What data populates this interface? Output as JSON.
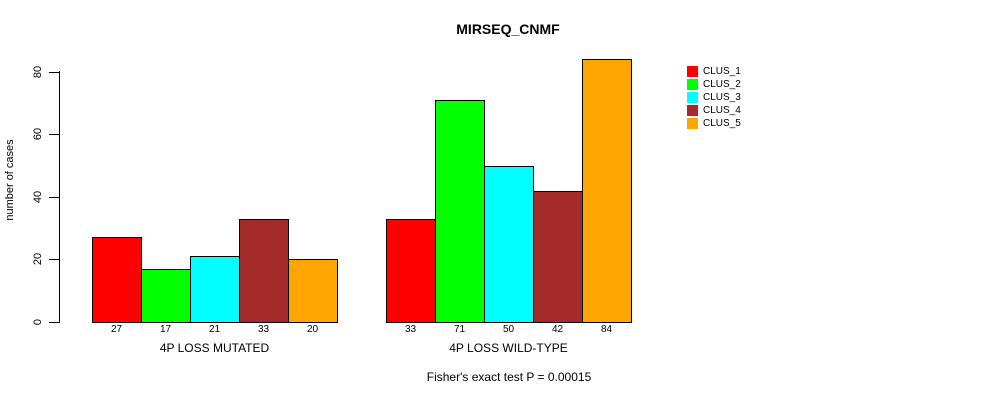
{
  "title": "MIRSEQ_CNMF",
  "y_axis": {
    "label": "number of cases",
    "ticks": [
      0,
      20,
      40,
      60,
      80
    ]
  },
  "caption": "Fisher's exact test P = 0.00015",
  "legend": {
    "items": [
      {
        "label": "CLUS_1",
        "color": "#FF0000"
      },
      {
        "label": "CLUS_2",
        "color": "#00FF00"
      },
      {
        "label": "CLUS_3",
        "color": "#00FFFF"
      },
      {
        "label": "CLUS_4",
        "color": "#A52A2A"
      },
      {
        "label": "CLUS_5",
        "color": "#FFA500"
      }
    ]
  },
  "chart_data": {
    "type": "bar",
    "title": "MIRSEQ_CNMF",
    "ylabel": "number of cases",
    "xlabel": "",
    "ylim": [
      0,
      84
    ],
    "yticks": [
      0,
      20,
      40,
      60,
      80
    ],
    "grid": false,
    "legend_position": "right-outside",
    "categories": [
      "4P LOSS MUTATED",
      "4P LOSS WILD-TYPE"
    ],
    "series": [
      {
        "name": "CLUS_1",
        "color": "#FF0000",
        "values": [
          27,
          33
        ]
      },
      {
        "name": "CLUS_2",
        "color": "#00FF00",
        "values": [
          17,
          71
        ]
      },
      {
        "name": "CLUS_3",
        "color": "#00FFFF",
        "values": [
          21,
          50
        ]
      },
      {
        "name": "CLUS_4",
        "color": "#A52A2A",
        "values": [
          33,
          42
        ]
      },
      {
        "name": "CLUS_5",
        "color": "#FFA500",
        "values": [
          20,
          84
        ]
      }
    ],
    "bar_value_labels": {
      "4P LOSS MUTATED": [
        27,
        17,
        21,
        33,
        20
      ],
      "4P LOSS WILD-TYPE": [
        33,
        71,
        50,
        42,
        84
      ]
    },
    "annotation": "Fisher's exact test P = 0.00015"
  }
}
